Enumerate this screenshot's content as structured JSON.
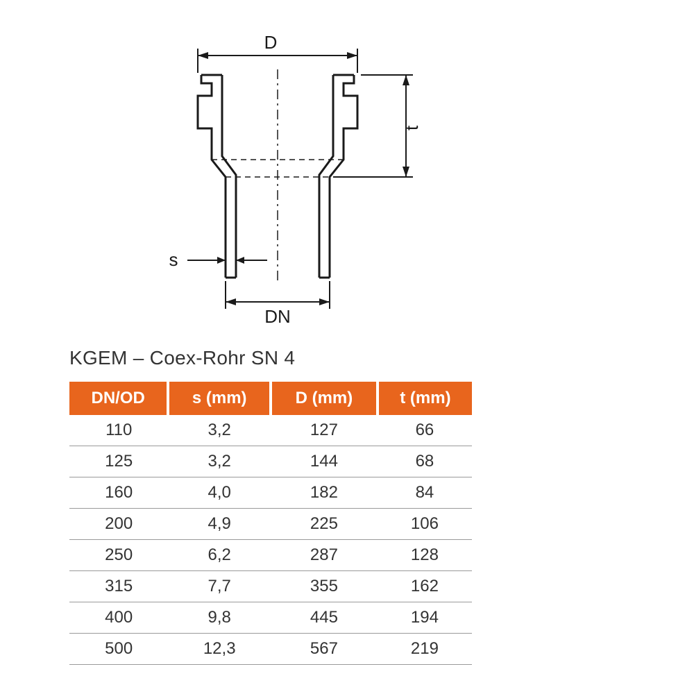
{
  "diagram": {
    "labels": {
      "D": "D",
      "t": "t",
      "s": "s",
      "DN": "DN"
    },
    "stroke_color": "#1a1a1a",
    "stroke_width_main": 3,
    "stroke_width_dim": 2,
    "background_color": "#ffffff"
  },
  "title": "KGEM – Coex-Rohr SN 4",
  "table": {
    "header_bg": "#e8651d",
    "header_fg": "#ffffff",
    "row_border": "#999999",
    "text_color": "#333333",
    "header_fontsize": 24,
    "cell_fontsize": 24,
    "columns": [
      "DN/OD",
      "s (mm)",
      "D (mm)",
      "t (mm)"
    ],
    "rows": [
      [
        "110",
        "3,2",
        "127",
        "66"
      ],
      [
        "125",
        "3,2",
        "144",
        "68"
      ],
      [
        "160",
        "4,0",
        "182",
        "84"
      ],
      [
        "200",
        "4,9",
        "225",
        "106"
      ],
      [
        "250",
        "6,2",
        "287",
        "128"
      ],
      [
        "315",
        "7,7",
        "355",
        "162"
      ],
      [
        "400",
        "9,8",
        "445",
        "194"
      ],
      [
        "500",
        "12,3",
        "567",
        "219"
      ]
    ]
  }
}
